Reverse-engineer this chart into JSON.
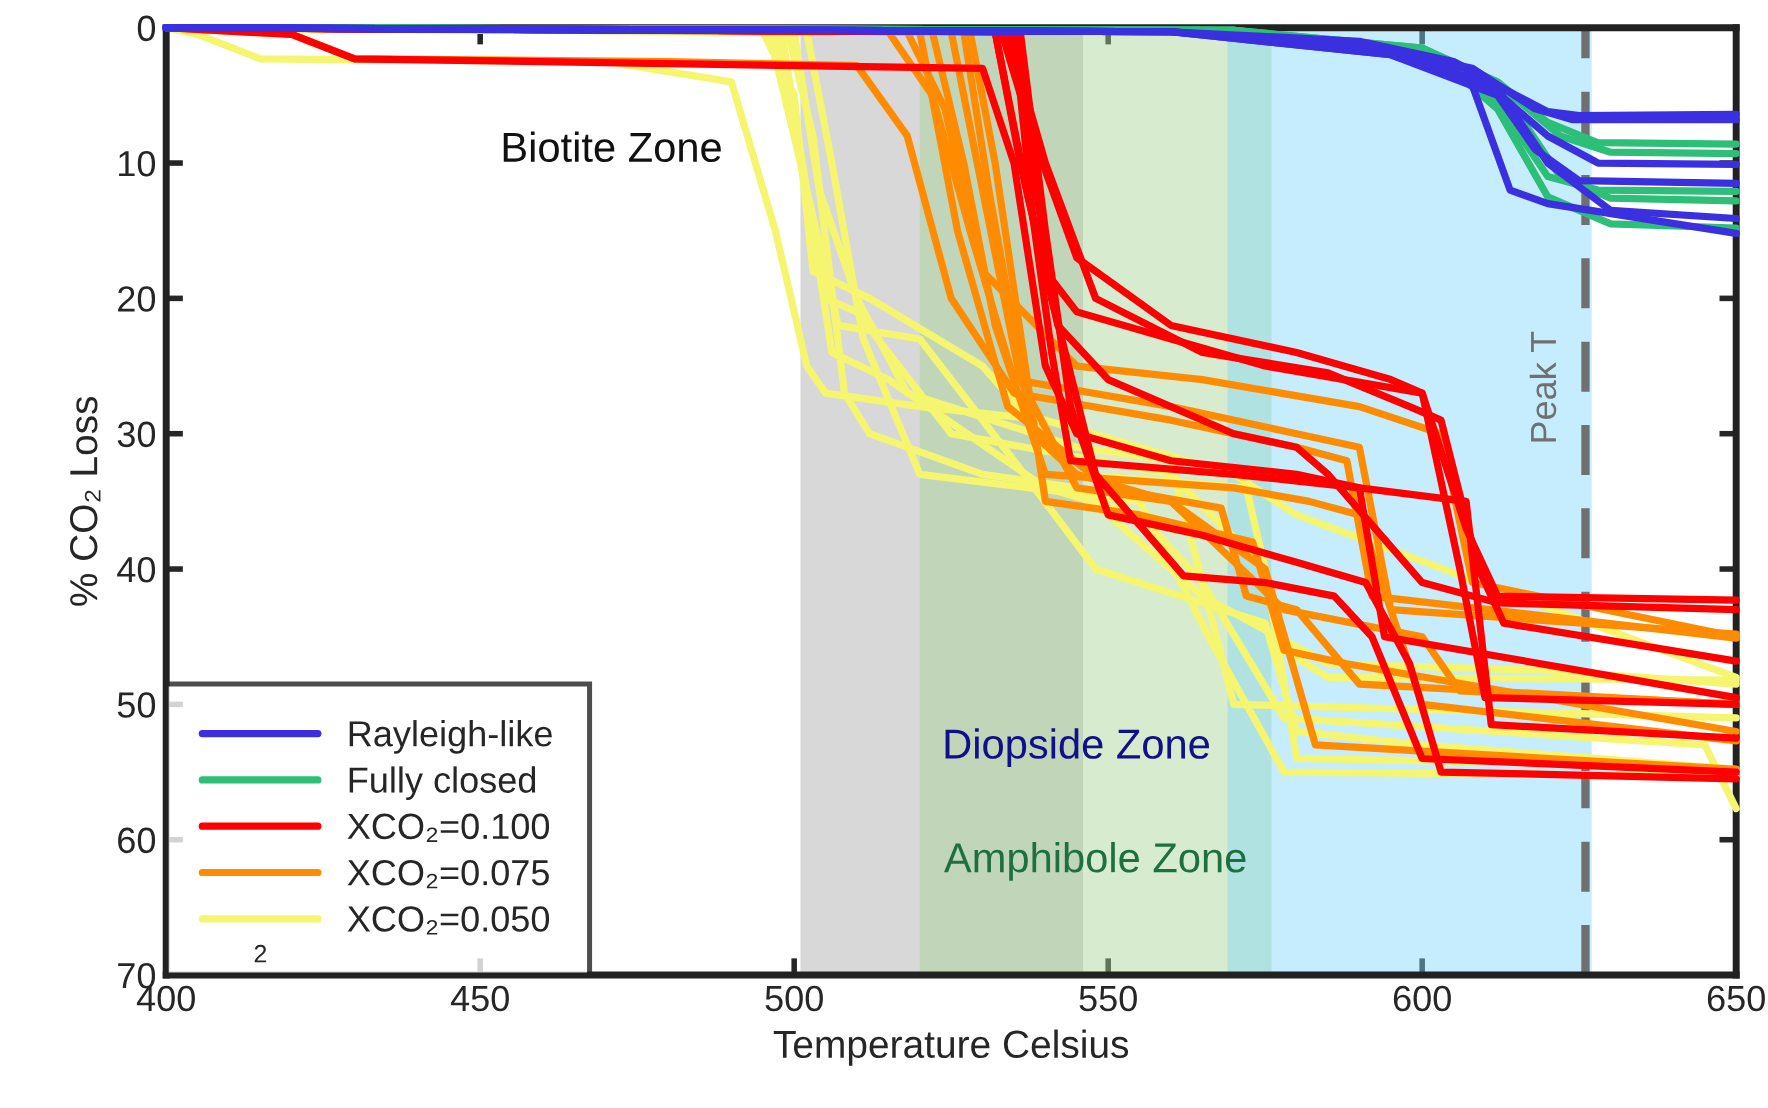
{
  "chart_data": {
    "type": "line",
    "xlabel": "Temperature Celsius",
    "ylabel": "% CO₂ Loss",
    "xlim": [
      400,
      650
    ],
    "xticks": [
      400,
      450,
      500,
      550,
      600,
      650
    ],
    "ylim": [
      70,
      0
    ],
    "yticks": [
      0,
      10,
      20,
      30,
      40,
      50,
      60,
      70
    ],
    "grid": false,
    "legend": "bottom left",
    "line_style": "solid",
    "marker": "none",
    "bands": [
      {
        "axis": "x",
        "from": 501,
        "to": 546,
        "label": "Biotite Zone",
        "color": "#a8a8a8"
      },
      {
        "axis": "x",
        "from": 520,
        "to": 576,
        "label": "Amphibole Zone",
        "color": "#a6d592"
      },
      {
        "axis": "x",
        "from": 569,
        "to": 627,
        "label": "Diopside Zone",
        "color": "#80d8fa"
      }
    ],
    "ref_lines": [
      {
        "axis": "x",
        "value": 626,
        "label": "Peak T",
        "color": "#707070",
        "line_style": "dashed"
      }
    ],
    "annotations": [
      "2"
    ],
    "series": [
      {
        "name": "Rayleigh-like",
        "color": "#3b30e0",
        "x": [
          400,
          560,
          590,
          605,
          615,
          620,
          625,
          650
        ],
        "values": [
          0,
          0.3,
          1,
          2.5,
          5,
          6.2,
          6.5,
          6.4
        ]
      },
      {
        "color": "#3b30e0",
        "x": [
          400,
          560,
          590,
          608,
          618,
          624,
          650
        ],
        "values": [
          0,
          0.3,
          1.2,
          3,
          6,
          6.8,
          6.8
        ]
      },
      {
        "color": "#3b30e0",
        "x": [
          400,
          560,
          592,
          610,
          620,
          628,
          650
        ],
        "values": [
          0,
          0.3,
          1.5,
          4,
          8,
          10,
          10.1
        ]
      },
      {
        "color": "#3b30e0",
        "x": [
          400,
          560,
          592,
          607,
          614,
          620,
          650
        ],
        "values": [
          0,
          0.3,
          1.5,
          3,
          12,
          13,
          15.2
        ]
      },
      {
        "color": "#3b30e0",
        "x": [
          400,
          560,
          595,
          612,
          618,
          625,
          650
        ],
        "values": [
          0,
          0.3,
          2,
          5,
          9,
          11.3,
          11.5
        ]
      },
      {
        "color": "#3b30e0",
        "x": [
          400,
          560,
          595,
          612,
          620,
          630,
          650
        ],
        "values": [
          0,
          0.3,
          2,
          4.5,
          10,
          13.5,
          14.1
        ]
      },
      {
        "name": "Fully closed",
        "color": "#2dbf78",
        "x": [
          400,
          570,
          600,
          612,
          620,
          628,
          650
        ],
        "values": [
          0,
          0.2,
          1.5,
          4,
          7,
          8.5,
          8.6
        ]
      },
      {
        "color": "#2dbf78",
        "x": [
          400,
          570,
          600,
          613,
          622,
          630,
          650
        ],
        "values": [
          0,
          0.2,
          1.5,
          4.5,
          8,
          9.2,
          9.3
        ]
      },
      {
        "color": "#2dbf78",
        "x": [
          400,
          570,
          600,
          612,
          620,
          628,
          650
        ],
        "values": [
          0,
          0.2,
          1.8,
          5.5,
          11,
          12,
          12.1
        ]
      },
      {
        "color": "#2dbf78",
        "x": [
          400,
          570,
          602,
          614,
          622,
          630,
          650
        ],
        "values": [
          0,
          0.2,
          2,
          5.5,
          11,
          12.6,
          12.8
        ]
      },
      {
        "color": "#2dbf78",
        "x": [
          400,
          570,
          602,
          612,
          620,
          630,
          650
        ],
        "values": [
          0,
          0.2,
          2,
          6,
          12.5,
          14.5,
          14.8
        ]
      },
      {
        "name": "XCO₂=0.100",
        "color": "#ff0000",
        "x": [
          400,
          533,
          538,
          545,
          560,
          580,
          595,
          600,
          607,
          612,
          650
        ],
        "values": [
          0,
          0.3,
          8,
          17,
          22,
          24,
          26,
          27,
          37,
          42,
          42.3
        ]
      },
      {
        "color": "#ff0000",
        "x": [
          400,
          534,
          540,
          548,
          565,
          585,
          598,
          603,
          609,
          613,
          650
        ],
        "values": [
          0,
          0.3,
          10,
          20,
          24,
          25.5,
          28,
          29,
          40,
          44,
          46.8
        ]
      },
      {
        "color": "#ff0000",
        "x": [
          400,
          532,
          536,
          540,
          545,
          560,
          575,
          600,
          606,
          610,
          650
        ],
        "values": [
          0,
          0.3,
          10,
          18,
          21,
          23,
          25,
          27,
          40,
          49.5,
          50
        ]
      },
      {
        "color": "#ff0000",
        "x": [
          400,
          535,
          538,
          541,
          544,
          570,
          590,
          607,
          611,
          650
        ],
        "values": [
          0,
          0.3,
          14,
          24,
          32,
          33,
          34,
          35,
          51.5,
          52.5
        ]
      },
      {
        "color": "#ff0000",
        "x": [
          400,
          536,
          540,
          544,
          550,
          565,
          580,
          591,
          598,
          603,
          650
        ],
        "values": [
          0,
          0.3,
          15,
          28,
          36,
          37.5,
          39.5,
          41,
          47,
          55,
          55.5
        ]
      },
      {
        "color": "#ff0000",
        "x": [
          400,
          420,
          430,
          500,
          530,
          535,
          540,
          545,
          560,
          580,
          590,
          594,
          650
        ],
        "values": [
          0,
          0.5,
          2.3,
          2.8,
          3,
          10,
          25,
          30,
          32,
          33,
          34,
          45,
          49.5
        ]
      },
      {
        "color": "#ff0000",
        "x": [
          400,
          532,
          537,
          542,
          550,
          570,
          580,
          585,
          600,
          612,
          650
        ],
        "values": [
          0,
          0.3,
          12,
          22,
          26,
          30,
          31,
          33,
          41,
          42.5,
          43
        ]
      },
      {
        "color": "#ff0000",
        "x": [
          400,
          535,
          541,
          548,
          562,
          575,
          586,
          592,
          600,
          650
        ],
        "values": [
          0,
          0.3,
          20,
          33,
          40.5,
          41,
          42,
          45,
          54,
          55
        ]
      },
      {
        "name": "XCO₂=0.075",
        "color": "#ff8c00",
        "x": [
          400,
          420,
          430,
          480,
          510,
          518,
          525,
          535,
          560,
          580,
          588,
          592,
          650
        ],
        "values": [
          0,
          0.5,
          2.3,
          2.5,
          2.8,
          8,
          20,
          27,
          29,
          31,
          32,
          42,
          45.1
        ]
      },
      {
        "color": "#ff8c00",
        "x": [
          400,
          515,
          522,
          528,
          535,
          560,
          580,
          590,
          595,
          650
        ],
        "values": [
          0,
          0.3,
          5,
          15,
          26,
          28,
          30,
          31,
          43,
          44.8
        ]
      },
      {
        "color": "#ff8c00",
        "x": [
          400,
          522,
          527,
          532,
          540,
          570,
          582,
          590,
          600,
          650
        ],
        "values": [
          0,
          0.3,
          10,
          22,
          33,
          34,
          35,
          36,
          50,
          52.7
        ]
      },
      {
        "color": "#ff8c00",
        "x": [
          400,
          525,
          530,
          536,
          545,
          560,
          575,
          583,
          650
        ],
        "values": [
          0,
          0.3,
          12,
          26,
          34,
          35,
          40,
          53,
          54.8
        ]
      },
      {
        "color": "#ff8c00",
        "x": [
          400,
          520,
          526,
          534,
          550,
          568,
          572,
          580,
          590,
          650
        ],
        "values": [
          0,
          0.3,
          15,
          28,
          34,
          35.5,
          42,
          43,
          48.5,
          50
        ]
      },
      {
        "color": "#ff8c00",
        "x": [
          400,
          528,
          532,
          540,
          555,
          573,
          578,
          588,
          650
        ],
        "values": [
          0,
          0.3,
          10,
          35,
          36,
          38,
          46,
          47,
          52
        ]
      },
      {
        "color": "#ff8c00",
        "x": [
          400,
          518,
          524,
          530,
          545,
          565,
          590,
          603,
          608,
          650
        ],
        "values": [
          0,
          0.3,
          6,
          18,
          25,
          26,
          28,
          30,
          41,
          45
        ]
      },
      {
        "color": "#ff8c00",
        "x": [
          400,
          527,
          531,
          538,
          545,
          560,
          578,
          600,
          606,
          650
        ],
        "values": [
          0,
          0.3,
          12,
          30,
          33,
          35,
          43,
          45,
          49,
          50
        ]
      },
      {
        "name": "XCO₂=0.050",
        "color": "#f5f570",
        "x": [
          400,
          405,
          415,
          470,
          490,
          497,
          502,
          505,
          520,
          540,
          570,
          580,
          650
        ],
        "values": [
          0,
          0.5,
          2.3,
          2.5,
          4,
          15,
          25,
          27,
          28,
          29,
          33,
          36,
          48
        ]
      },
      {
        "color": "#f5f570",
        "x": [
          400,
          495,
          500,
          503,
          512,
          530,
          545,
          572,
          578,
          585,
          650
        ],
        "values": [
          0,
          0.3,
          5,
          18,
          20,
          25,
          33,
          34,
          46,
          48,
          48.2
        ]
      },
      {
        "color": "#f5f570",
        "x": [
          400,
          496,
          501,
          505,
          510,
          525,
          560,
          575,
          580,
          640,
          650
        ],
        "values": [
          0,
          0.3,
          10,
          20,
          21,
          30,
          33,
          40,
          54,
          54.5,
          55
        ]
      },
      {
        "color": "#f5f570",
        "x": [
          400,
          497,
          502,
          507,
          520,
          535,
          548,
          575,
          580,
          600,
          650
        ],
        "values": [
          0,
          0.3,
          12,
          22,
          23,
          32,
          40,
          44,
          52,
          53,
          54.8
        ]
      },
      {
        "color": "#f5f570",
        "x": [
          400,
          498,
          503,
          506,
          515,
          540,
          555,
          565,
          578,
          645,
          650
        ],
        "values": [
          0,
          0.3,
          15,
          24,
          26,
          34,
          36,
          41,
          51,
          53,
          57.7
        ]
      },
      {
        "color": "#f5f570",
        "x": [
          400,
          499,
          503,
          508,
          512,
          530,
          545,
          565,
          585,
          620,
          650
        ],
        "values": [
          0,
          0.3,
          8,
          27,
          30,
          33,
          34,
          42,
          47,
          47.5,
          48.5
        ]
      },
      {
        "color": "#f5f570",
        "x": [
          400,
          500,
          504,
          510,
          518,
          545,
          560,
          570,
          650
        ],
        "values": [
          0,
          0.3,
          12,
          20,
          27,
          31,
          32,
          50,
          51
        ]
      },
      {
        "color": "#f5f570",
        "x": [
          400,
          502,
          506,
          511,
          520,
          555,
          566,
          578,
          650
        ],
        "values": [
          0,
          0.3,
          10,
          23,
          33,
          35,
          45,
          55,
          55.3
        ]
      }
    ]
  }
}
